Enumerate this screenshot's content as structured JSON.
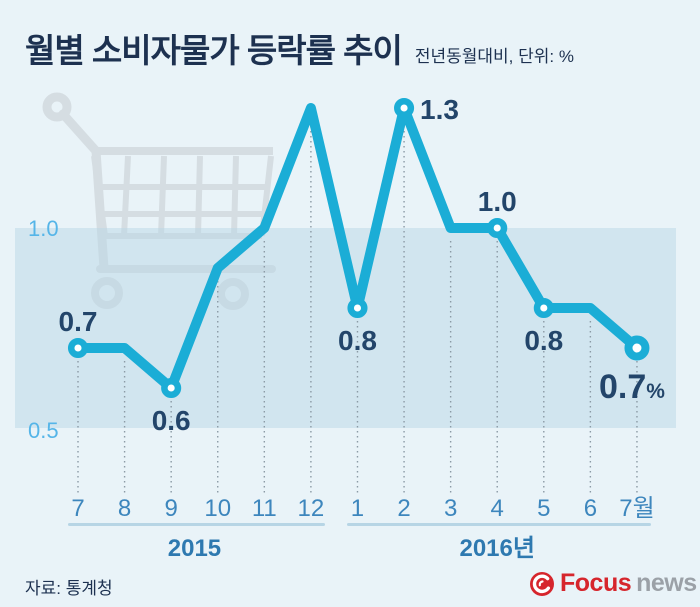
{
  "header": {
    "title": "월별 소비자물가 등락률 추이",
    "subtitle": "전년동월대비, 단위: %"
  },
  "footer": {
    "source": "자료: 통계청",
    "logo": {
      "word1": "Focus",
      "word2": "news"
    }
  },
  "colors": {
    "bg": "#e9f3f8",
    "band": "#bad8e6",
    "line": "#1badd6",
    "navy": "#1d3150",
    "label-navy": "#23456a",
    "sky": "#55b5e8",
    "month-blue": "#3d86bd",
    "year-blue": "#2e79b0",
    "rail": "#b7d5e5",
    "guide": "#8b9aa5",
    "cart": "#d5dde2",
    "brand-red": "#d6252c",
    "news-gray": "#9ba1a7"
  },
  "chart_data": {
    "type": "line",
    "title": "월별 소비자물가 등락률 추이",
    "subtitle": "전년동월대비, 단위: %",
    "unit": "%",
    "categories": [
      "7",
      "8",
      "9",
      "10",
      "11",
      "12",
      "1",
      "2",
      "3",
      "4",
      "5",
      "6",
      "7월"
    ],
    "values": [
      0.7,
      0.7,
      0.6,
      0.9,
      1.0,
      1.3,
      0.8,
      1.3,
      1.0,
      1.0,
      0.8,
      0.8,
      0.7
    ],
    "year_groups": [
      {
        "label": "2015",
        "start": 0,
        "end": 5
      },
      {
        "label": "2016년",
        "start": 6,
        "end": 12
      }
    ],
    "gridlines": [
      {
        "value": 1.0,
        "label": "1.0"
      },
      {
        "value": 0.5,
        "label": "0.5"
      }
    ],
    "band": {
      "from": 0.5,
      "to": 1.0
    },
    "marker_indices": [
      0,
      2,
      6,
      7,
      9,
      10,
      12
    ],
    "point_labels": [
      {
        "index": 0,
        "text": "0.7",
        "pos": "above"
      },
      {
        "index": 2,
        "text": "0.6",
        "pos": "below"
      },
      {
        "index": 6,
        "text": "0.8",
        "pos": "below"
      },
      {
        "index": 7,
        "text": "1.3",
        "pos": "right"
      },
      {
        "index": 9,
        "text": "1.0",
        "pos": "above"
      },
      {
        "index": 10,
        "text": "0.8",
        "pos": "below"
      },
      {
        "index": 12,
        "text": "0.7",
        "suffix": "%",
        "pos": "big-below"
      }
    ],
    "ylim": [
      0.4,
      1.45
    ],
    "legend": "none",
    "grid": "band-only"
  }
}
